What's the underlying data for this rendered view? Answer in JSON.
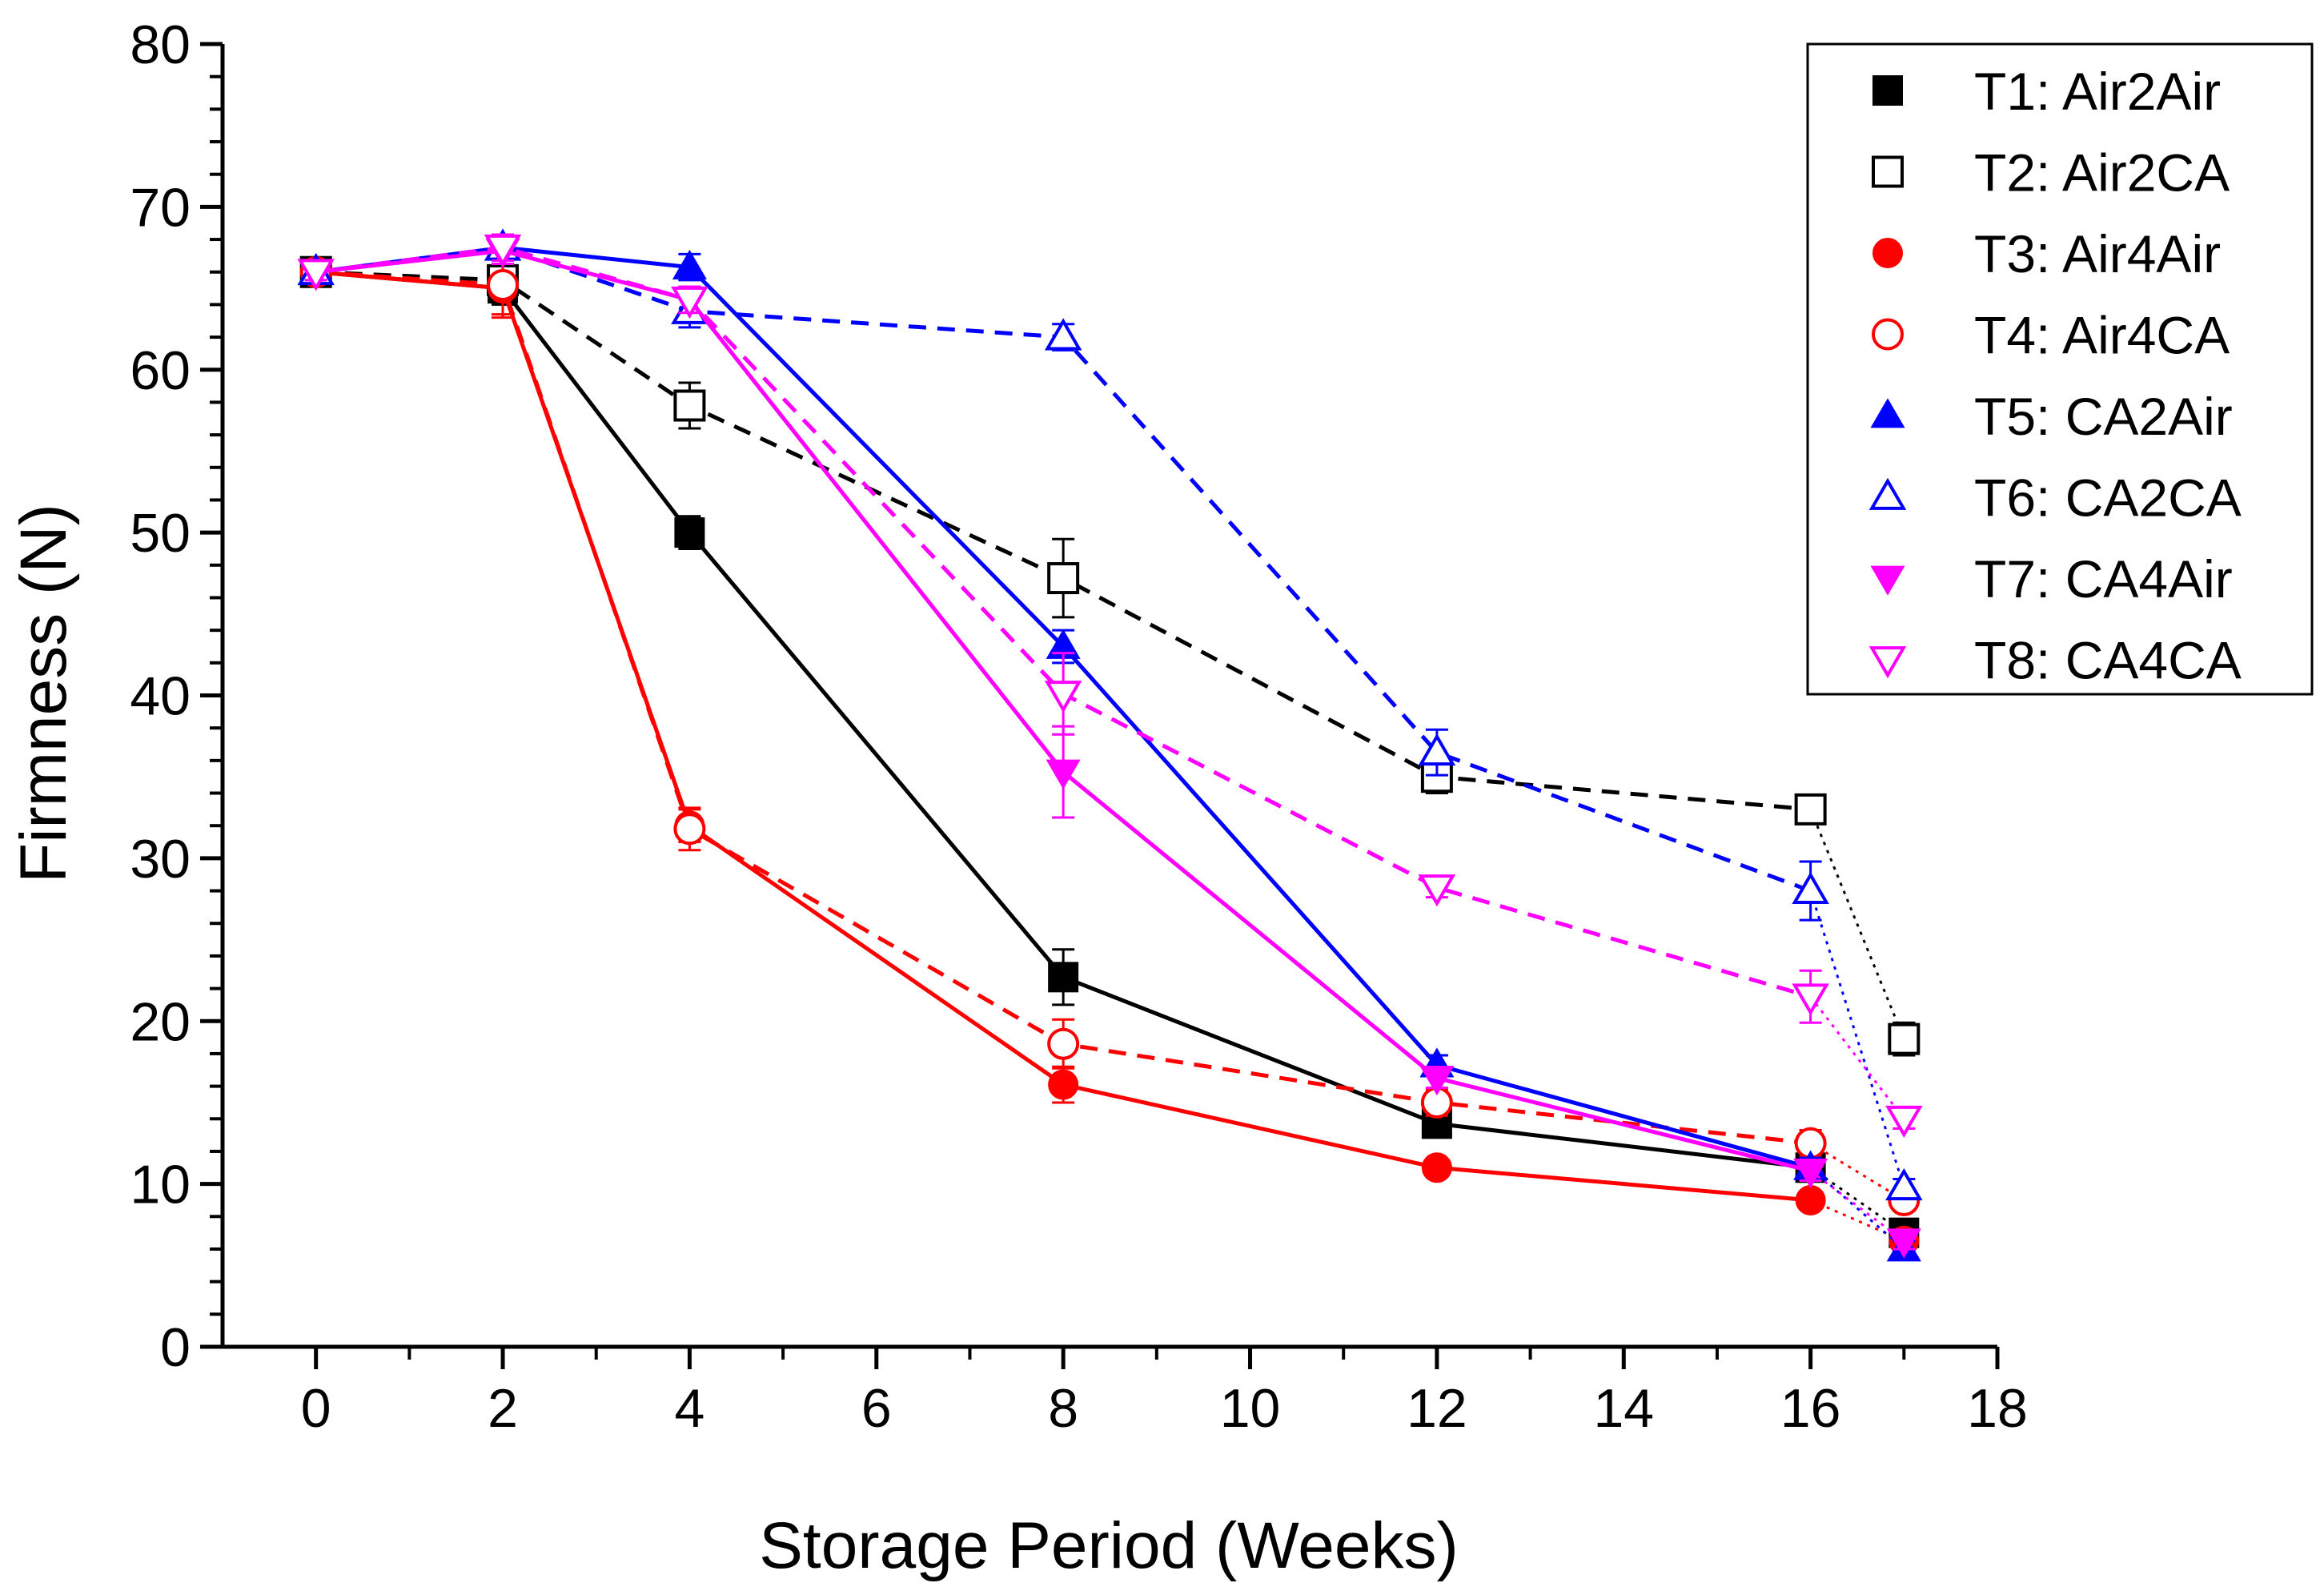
{
  "chart_data": {
    "type": "line",
    "title": "",
    "xlabel": "Storage Period (Weeks)",
    "ylabel": "Firmness (N)",
    "xlim": [
      -1,
      18
    ],
    "ylim": [
      0,
      80
    ],
    "xticks": [
      0,
      2,
      4,
      6,
      8,
      10,
      12,
      14,
      16,
      18
    ],
    "yticks": [
      0,
      10,
      20,
      30,
      40,
      50,
      60,
      70,
      80
    ],
    "x": [
      0,
      2,
      4,
      8,
      12,
      16,
      17
    ],
    "legend_position": "top-right",
    "series": [
      {
        "name": "T1: Air2Air",
        "color": "#000000",
        "marker": "square",
        "filled": true,
        "line": "solid",
        "values": [
          66,
          65,
          50,
          22.7,
          13.7,
          11,
          7
        ],
        "errors": [
          0.5,
          1,
          1,
          1.7,
          0.5,
          0.7,
          0.5
        ]
      },
      {
        "name": "T2: Air2CA",
        "color": "#000000",
        "marker": "square",
        "filled": false,
        "line": "dash",
        "values": [
          66,
          65.5,
          57.8,
          47.2,
          35,
          33,
          18.9
        ],
        "errors": [
          0.5,
          1,
          1.4,
          2.4,
          1,
          0.7,
          1
        ]
      },
      {
        "name": "T3: Air4Air",
        "color": "#ff0000",
        "marker": "circle",
        "filled": true,
        "line": "solid",
        "values": [
          66,
          65,
          32,
          16.1,
          11,
          9,
          6.5
        ],
        "errors": [
          0.5,
          1.8,
          1,
          1.1,
          0.5,
          0.5,
          0.5
        ]
      },
      {
        "name": "T4: Air4CA",
        "color": "#ff0000",
        "marker": "circle",
        "filled": false,
        "line": "dash",
        "values": [
          66,
          65.2,
          31.8,
          18.6,
          15,
          12.5,
          9
        ],
        "errors": [
          0.5,
          1.8,
          1.3,
          1.5,
          0.8,
          0.8,
          0.5
        ]
      },
      {
        "name": "T5: CA2Air",
        "color": "#0000ff",
        "marker": "triangle-up",
        "filled": true,
        "line": "solid",
        "values": [
          66,
          67.5,
          66.3,
          43,
          17.3,
          11,
          6
        ],
        "errors": [
          0.5,
          0.8,
          0.8,
          1,
          0.6,
          0.6,
          0.5
        ]
      },
      {
        "name": "T6: CA2CA",
        "color": "#0000ff",
        "marker": "triangle-up",
        "filled": false,
        "line": "dash",
        "values": [
          66,
          67.5,
          63.6,
          62,
          36.5,
          28,
          9.8
        ],
        "errors": [
          0.5,
          0.8,
          1,
          0.8,
          1.4,
          1.8,
          0.5
        ]
      },
      {
        "name": "T7: CA4Air",
        "color": "#ff00ff",
        "marker": "triangle-down",
        "filled": true,
        "line": "solid",
        "values": [
          66,
          67.3,
          64.3,
          35.3,
          16.5,
          10.8,
          6.5
        ],
        "errors": [
          0.5,
          0.8,
          0.8,
          2.8,
          0.6,
          0.6,
          0.5
        ]
      },
      {
        "name": "T8: CA4CA",
        "color": "#ff00ff",
        "marker": "triangle-down",
        "filled": false,
        "line": "dash",
        "values": [
          66,
          67.5,
          64.3,
          40.1,
          28.2,
          21.5,
          14
        ],
        "errors": [
          0.5,
          0.8,
          0.8,
          2.5,
          0.6,
          1.6,
          0.6
        ]
      }
    ]
  }
}
